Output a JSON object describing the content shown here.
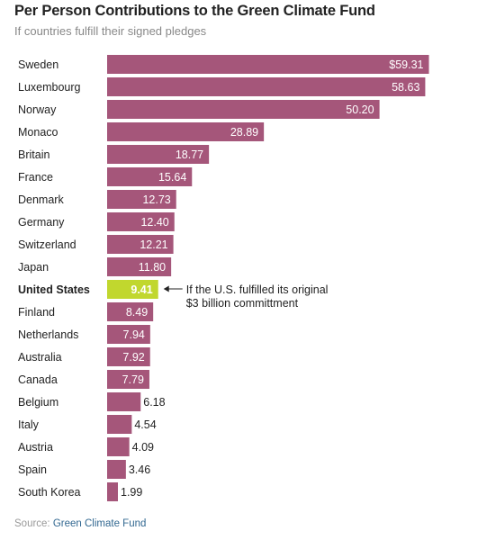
{
  "title": "Per Person Contributions to the Green Climate Fund",
  "subtitle": "If countries fulfill their signed pledges",
  "source_label": "Source:",
  "source_name": "Green Climate Fund",
  "colors": {
    "bar": "#a5567a",
    "highlight": "#c1d72e",
    "label_text": "#ffffff",
    "outside_text": "#222222"
  },
  "annotation": {
    "line1": "If the U.S. fulfilled its original",
    "line2": "$3 billion committment"
  },
  "chart_data": {
    "type": "bar",
    "orientation": "horizontal",
    "title": "Per Person Contributions to the Green Climate Fund",
    "subtitle": "If countries fulfill their signed pledges",
    "xlim": [
      0,
      60
    ],
    "grid": false,
    "legend": "none",
    "categories": [
      "Sweden",
      "Luxembourg",
      "Norway",
      "Monaco",
      "Britain",
      "France",
      "Denmark",
      "Germany",
      "Switzerland",
      "Japan",
      "United States",
      "Finland",
      "Netherlands",
      "Australia",
      "Canada",
      "Belgium",
      "Italy",
      "Austria",
      "Spain",
      "South Korea"
    ],
    "values": [
      59.31,
      58.63,
      50.2,
      28.89,
      18.77,
      15.64,
      12.73,
      12.4,
      12.21,
      11.8,
      9.41,
      8.49,
      7.94,
      7.92,
      7.79,
      6.18,
      4.54,
      4.09,
      3.46,
      1.99
    ],
    "labels": [
      "$59.31",
      "58.63",
      "50.20",
      "28.89",
      "18.77",
      "15.64",
      "12.73",
      "12.40",
      "12.21",
      "11.80",
      "9.41",
      "8.49",
      "7.94",
      "7.92",
      "7.79",
      "6.18",
      "4.54",
      "4.09",
      "3.46",
      "1.99"
    ],
    "highlight": "United States"
  }
}
